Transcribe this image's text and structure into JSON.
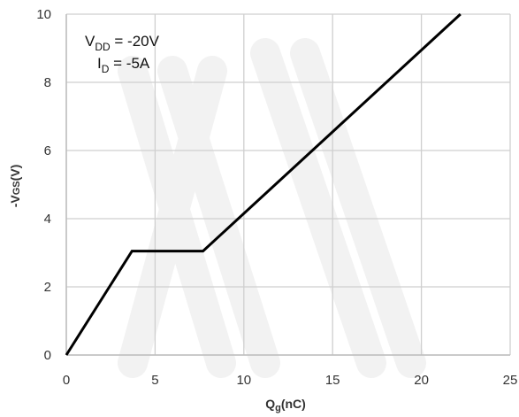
{
  "chart_data": {
    "type": "line",
    "xlabel": {
      "main": "Q",
      "sub": "g",
      "rest": "(nC)"
    },
    "ylabel": {
      "main": "-V",
      "sub": "GS",
      "rest": "(V)"
    },
    "xlim": [
      0,
      25
    ],
    "ylim": [
      0,
      10
    ],
    "xticks": [
      0,
      5,
      10,
      15,
      20,
      25
    ],
    "yticks": [
      0,
      2,
      4,
      6,
      8,
      10
    ],
    "xtick_labels": [
      "0",
      "5",
      "10",
      "15",
      "20",
      "25"
    ],
    "ytick_labels": [
      "0",
      "2",
      "4",
      "6",
      "8",
      "10"
    ],
    "grid": true,
    "annotations": [
      {
        "main": "V",
        "sub": "DD",
        "rest": " = -20V"
      },
      {
        "main": "I",
        "sub": "D",
        "rest": " = -5A"
      }
    ],
    "series": [
      {
        "color": "#000000",
        "x": [
          0,
          3.7,
          7.7,
          22.2
        ],
        "y": [
          0,
          3.05,
          3.05,
          10
        ]
      }
    ],
    "watermark_color": "#f2f2f2"
  }
}
